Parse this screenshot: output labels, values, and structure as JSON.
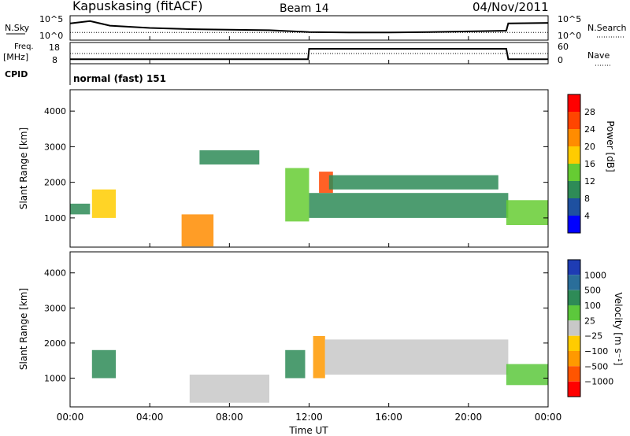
{
  "header": {
    "station": "Kapuskasing (fitACF)",
    "beam": "Beam 14",
    "date": "04/Nov/2011"
  },
  "sky_panel": {
    "left_label": "N.Sky",
    "right_label": "N.Search",
    "left_ticks": [
      "10^5",
      "10^0"
    ],
    "right_ticks": [
      "10^5",
      "10^0"
    ]
  },
  "freq_panel": {
    "left_label_line1": "Freq.",
    "left_label_line2": "[MHz]",
    "right_label": "Nave",
    "left_ticks": [
      "18",
      "8"
    ],
    "right_ticks": [
      "60",
      "0"
    ]
  },
  "cpid": {
    "label": "CPID",
    "value": "normal (fast) 151"
  },
  "power_panel": {
    "ylabel": "Slant Range [km]",
    "yticks": [
      "1000",
      "2000",
      "3000",
      "4000"
    ],
    "colorbar_label": "Power [dB]",
    "colorbar_ticks": [
      "4",
      "8",
      "12",
      "16",
      "20",
      "24",
      "28"
    ],
    "colorbar_colors": [
      "#0000ff",
      "#1e50a0",
      "#2e8b57",
      "#66cc33",
      "#ffcc00",
      "#ff8c00",
      "#ff4500",
      "#ff0000"
    ]
  },
  "velocity_panel": {
    "ylabel": "Slant Range [km]",
    "yticks": [
      "1000",
      "2000",
      "3000",
      "4000"
    ],
    "colorbar_label": "Velocity [m s⁻¹]",
    "colorbar_ticks": [
      "1000",
      "500",
      "100",
      "25",
      "−25",
      "−100",
      "−500",
      "−1000"
    ],
    "colorbar_colors": [
      "#1e3cb4",
      "#2a6e9a",
      "#2e8b57",
      "#5cc83c",
      "#c8c8c8",
      "#ffcc00",
      "#ff9900",
      "#ff5500",
      "#ff0000"
    ]
  },
  "x_axis": {
    "label": "Time UT",
    "ticks": [
      "00:00",
      "04:00",
      "08:00",
      "12:00",
      "16:00",
      "20:00",
      "00:00"
    ]
  },
  "chart_data": [
    {
      "type": "line",
      "title": "N.Sky / N.Search",
      "x_unit": "hours UT",
      "xlim": [
        0,
        24
      ],
      "series": [
        {
          "name": "N.Sky",
          "x": [
            0,
            1,
            2,
            4,
            6,
            8,
            10,
            12,
            14,
            16,
            18,
            20,
            21.9,
            22,
            24
          ],
          "y": [
            0.7,
            0.8,
            0.6,
            0.5,
            0.45,
            0.42,
            0.4,
            0.32,
            0.3,
            0.3,
            0.32,
            0.35,
            0.38,
            0.7,
            0.72
          ]
        },
        {
          "name": "N.Search",
          "x": [
            0,
            24
          ],
          "y": [
            0.3,
            0.3
          ]
        }
      ]
    },
    {
      "type": "line",
      "title": "Freq. / Nave",
      "x_unit": "hours UT",
      "xlim": [
        0,
        24
      ],
      "series": [
        {
          "name": "Freq. [MHz]",
          "x": [
            0,
            11.95,
            12.0,
            21.9,
            22.0,
            24
          ],
          "y": [
            10,
            10,
            15.5,
            15.5,
            10,
            10
          ]
        },
        {
          "name": "Nave",
          "x": [
            0,
            24
          ],
          "y": [
            30,
            30
          ]
        }
      ]
    },
    {
      "type": "heatmap",
      "title": "Power",
      "x_unit": "hours UT",
      "y_unit": "km",
      "xlim": [
        0,
        24
      ],
      "ylim": [
        180,
        4600
      ],
      "regions": [
        {
          "x": [
            0,
            1
          ],
          "y": [
            1100,
            1400
          ],
          "value": 8
        },
        {
          "x": [
            1.1,
            2.3
          ],
          "y": [
            1000,
            1800
          ],
          "value": 16
        },
        {
          "x": [
            5.6,
            7.2
          ],
          "y": [
            200,
            1100
          ],
          "value": 20
        },
        {
          "x": [
            6.5,
            9.5
          ],
          "y": [
            2500,
            2900
          ],
          "value": 8
        },
        {
          "x": [
            10.8,
            12.0
          ],
          "y": [
            900,
            2400
          ],
          "value": 12
        },
        {
          "x": [
            12.5,
            13.2
          ],
          "y": [
            1700,
            2300
          ],
          "value": 24
        },
        {
          "x": [
            12.0,
            22.0
          ],
          "y": [
            1000,
            1700
          ],
          "value": 8
        },
        {
          "x": [
            13,
            21.5
          ],
          "y": [
            1800,
            2200
          ],
          "value": 8
        },
        {
          "x": [
            21.9,
            24
          ],
          "y": [
            800,
            1500
          ],
          "value": 12
        }
      ]
    },
    {
      "type": "heatmap",
      "title": "Velocity",
      "x_unit": "hours UT",
      "y_unit": "km",
      "xlim": [
        0,
        24
      ],
      "ylim": [
        180,
        4600
      ],
      "regions": [
        {
          "x": [
            1.1,
            2.3
          ],
          "y": [
            1000,
            1800
          ],
          "value": 300
        },
        {
          "x": [
            6,
            10
          ],
          "y": [
            300,
            1100
          ],
          "value": 0
        },
        {
          "x": [
            10.8,
            11.8
          ],
          "y": [
            1000,
            1800
          ],
          "value": 200
        },
        {
          "x": [
            12.2,
            12.8
          ],
          "y": [
            1000,
            2200
          ],
          "value": -300
        },
        {
          "x": [
            12.8,
            22.0
          ],
          "y": [
            1100,
            2100
          ],
          "value": 0
        },
        {
          "x": [
            21.9,
            24
          ],
          "y": [
            800,
            1400
          ],
          "value": 50
        }
      ]
    }
  ]
}
